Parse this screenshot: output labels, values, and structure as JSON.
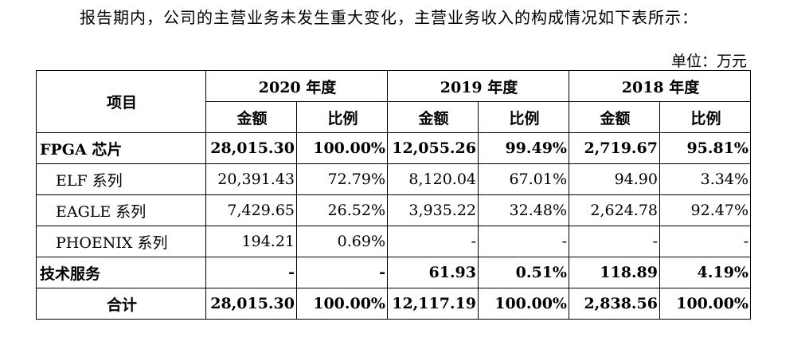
{
  "intro_text": "报告期内，公司的主营业务未发生重大变化，主营业务收入的构成情况如下表所示：",
  "unit_text": "单位：万元",
  "table": {
    "item_header": "项目",
    "years": [
      "2020 年度",
      "2019 年度",
      "2018 年度"
    ],
    "sub_headers": {
      "amount": "金额",
      "ratio": "比例"
    },
    "rows": [
      {
        "label": "FPGA 芯片",
        "values": [
          "28,015.30",
          "100.00%",
          "12,055.26",
          "99.49%",
          "2,719.67",
          "95.81%"
        ]
      },
      {
        "label": "ELF 系列",
        "values": [
          "20,391.43",
          "72.79%",
          "8,120.04",
          "67.01%",
          "94.90",
          "3.34%"
        ]
      },
      {
        "label": "EAGLE 系列",
        "values": [
          "7,429.65",
          "26.52%",
          "3,935.22",
          "32.48%",
          "2,624.78",
          "92.47%"
        ]
      },
      {
        "label": "PHOENIX 系列",
        "values": [
          "194.21",
          "0.69%",
          "-",
          "-",
          "-",
          "-"
        ]
      },
      {
        "label": "技术服务",
        "values": [
          "-",
          "-",
          "61.93",
          "0.51%",
          "118.89",
          "4.19%"
        ]
      },
      {
        "label": "合计",
        "values": [
          "28,015.30",
          "100.00%",
          "12,117.19",
          "100.00%",
          "2,838.56",
          "100.00%"
        ]
      }
    ]
  }
}
